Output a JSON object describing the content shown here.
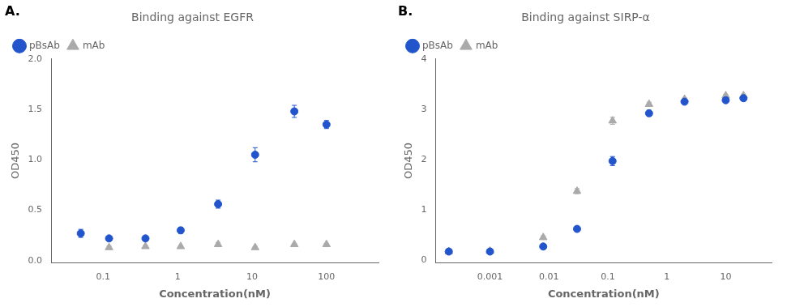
{
  "chart_data": [
    {
      "type": "scatter",
      "title": "Binding against EGFR",
      "annotations": [
        "A."
      ],
      "xlabel": "Concentration(nM)",
      "ylabel": "OD450",
      "log": "x",
      "grid": false,
      "legend": "upper left",
      "xlim": [
        0.02,
        500
      ],
      "ylim": [
        -0.02,
        2.0
      ],
      "xticks": [
        0.1,
        1,
        10,
        100
      ],
      "yticks": [
        {
          "value": 0.0,
          "label": "0.0"
        },
        0.5,
        {
          "value": 1.0,
          "label": "1.0"
        },
        1.5,
        {
          "value": 2.0,
          "label": "2.0"
        }
      ],
      "series": [
        {
          "name": "pBsAb",
          "color": "#2255cc",
          "marker": "circle",
          "x": [
            0.05,
            0.12,
            0.37,
            1.1,
            3.5,
            11,
            37,
            100
          ],
          "values": [
            0.27,
            0.22,
            0.22,
            0.3,
            0.56,
            1.05,
            1.48,
            1.35
          ],
          "errors": [
            0.04,
            0.02,
            0.02,
            0.03,
            0.04,
            0.07,
            0.06,
            0.04
          ]
        },
        {
          "name": "mAb",
          "color": "#aaaaaa",
          "marker": "triangle",
          "x": [
            0.12,
            0.37,
            1.1,
            3.5,
            11,
            37,
            100
          ],
          "values": [
            0.13,
            0.14,
            0.14,
            0.16,
            0.13,
            0.16,
            0.16
          ],
          "errors": [
            0.015,
            0.01,
            0.01,
            0.02,
            0.01,
            0.01,
            0.01
          ]
        }
      ]
    },
    {
      "type": "scatter",
      "title": "Binding against SIRP-α",
      "annotations": [
        "B."
      ],
      "xlabel": "Concentration(nM)",
      "ylabel": "OD450",
      "log": "x",
      "grid": false,
      "legend": "upper left",
      "xlim": [
        0.00012,
        60
      ],
      "ylim": [
        -0.05,
        4.0
      ],
      "xticks": [
        0.001,
        0.01,
        0.1,
        1,
        10
      ],
      "yticks": [
        0,
        1,
        2,
        3,
        4
      ],
      "series": [
        {
          "name": "pBsAb",
          "color": "#2255cc",
          "marker": "circle",
          "x": [
            0.0002,
            0.001,
            0.008,
            0.03,
            0.12,
            0.5,
            2,
            10,
            20
          ],
          "values": [
            0.17,
            0.17,
            0.27,
            0.62,
            1.97,
            2.92,
            3.15,
            3.18,
            3.22
          ],
          "errors": [
            0.02,
            0.02,
            0.03,
            0.05,
            0.09,
            0.06,
            0.04,
            0.04,
            0.04
          ]
        },
        {
          "name": "mAb",
          "color": "#aaaaaa",
          "marker": "triangle",
          "x": [
            0.0002,
            0.001,
            0.008,
            0.03,
            0.12,
            0.5,
            2,
            10,
            20
          ],
          "values": [
            0.17,
            0.18,
            0.45,
            1.37,
            2.77,
            3.1,
            3.2,
            3.27,
            3.27
          ],
          "errors": [
            0.02,
            0.02,
            0.03,
            0.05,
            0.07,
            0.04,
            0.03,
            0.03,
            0.03
          ]
        }
      ]
    }
  ]
}
